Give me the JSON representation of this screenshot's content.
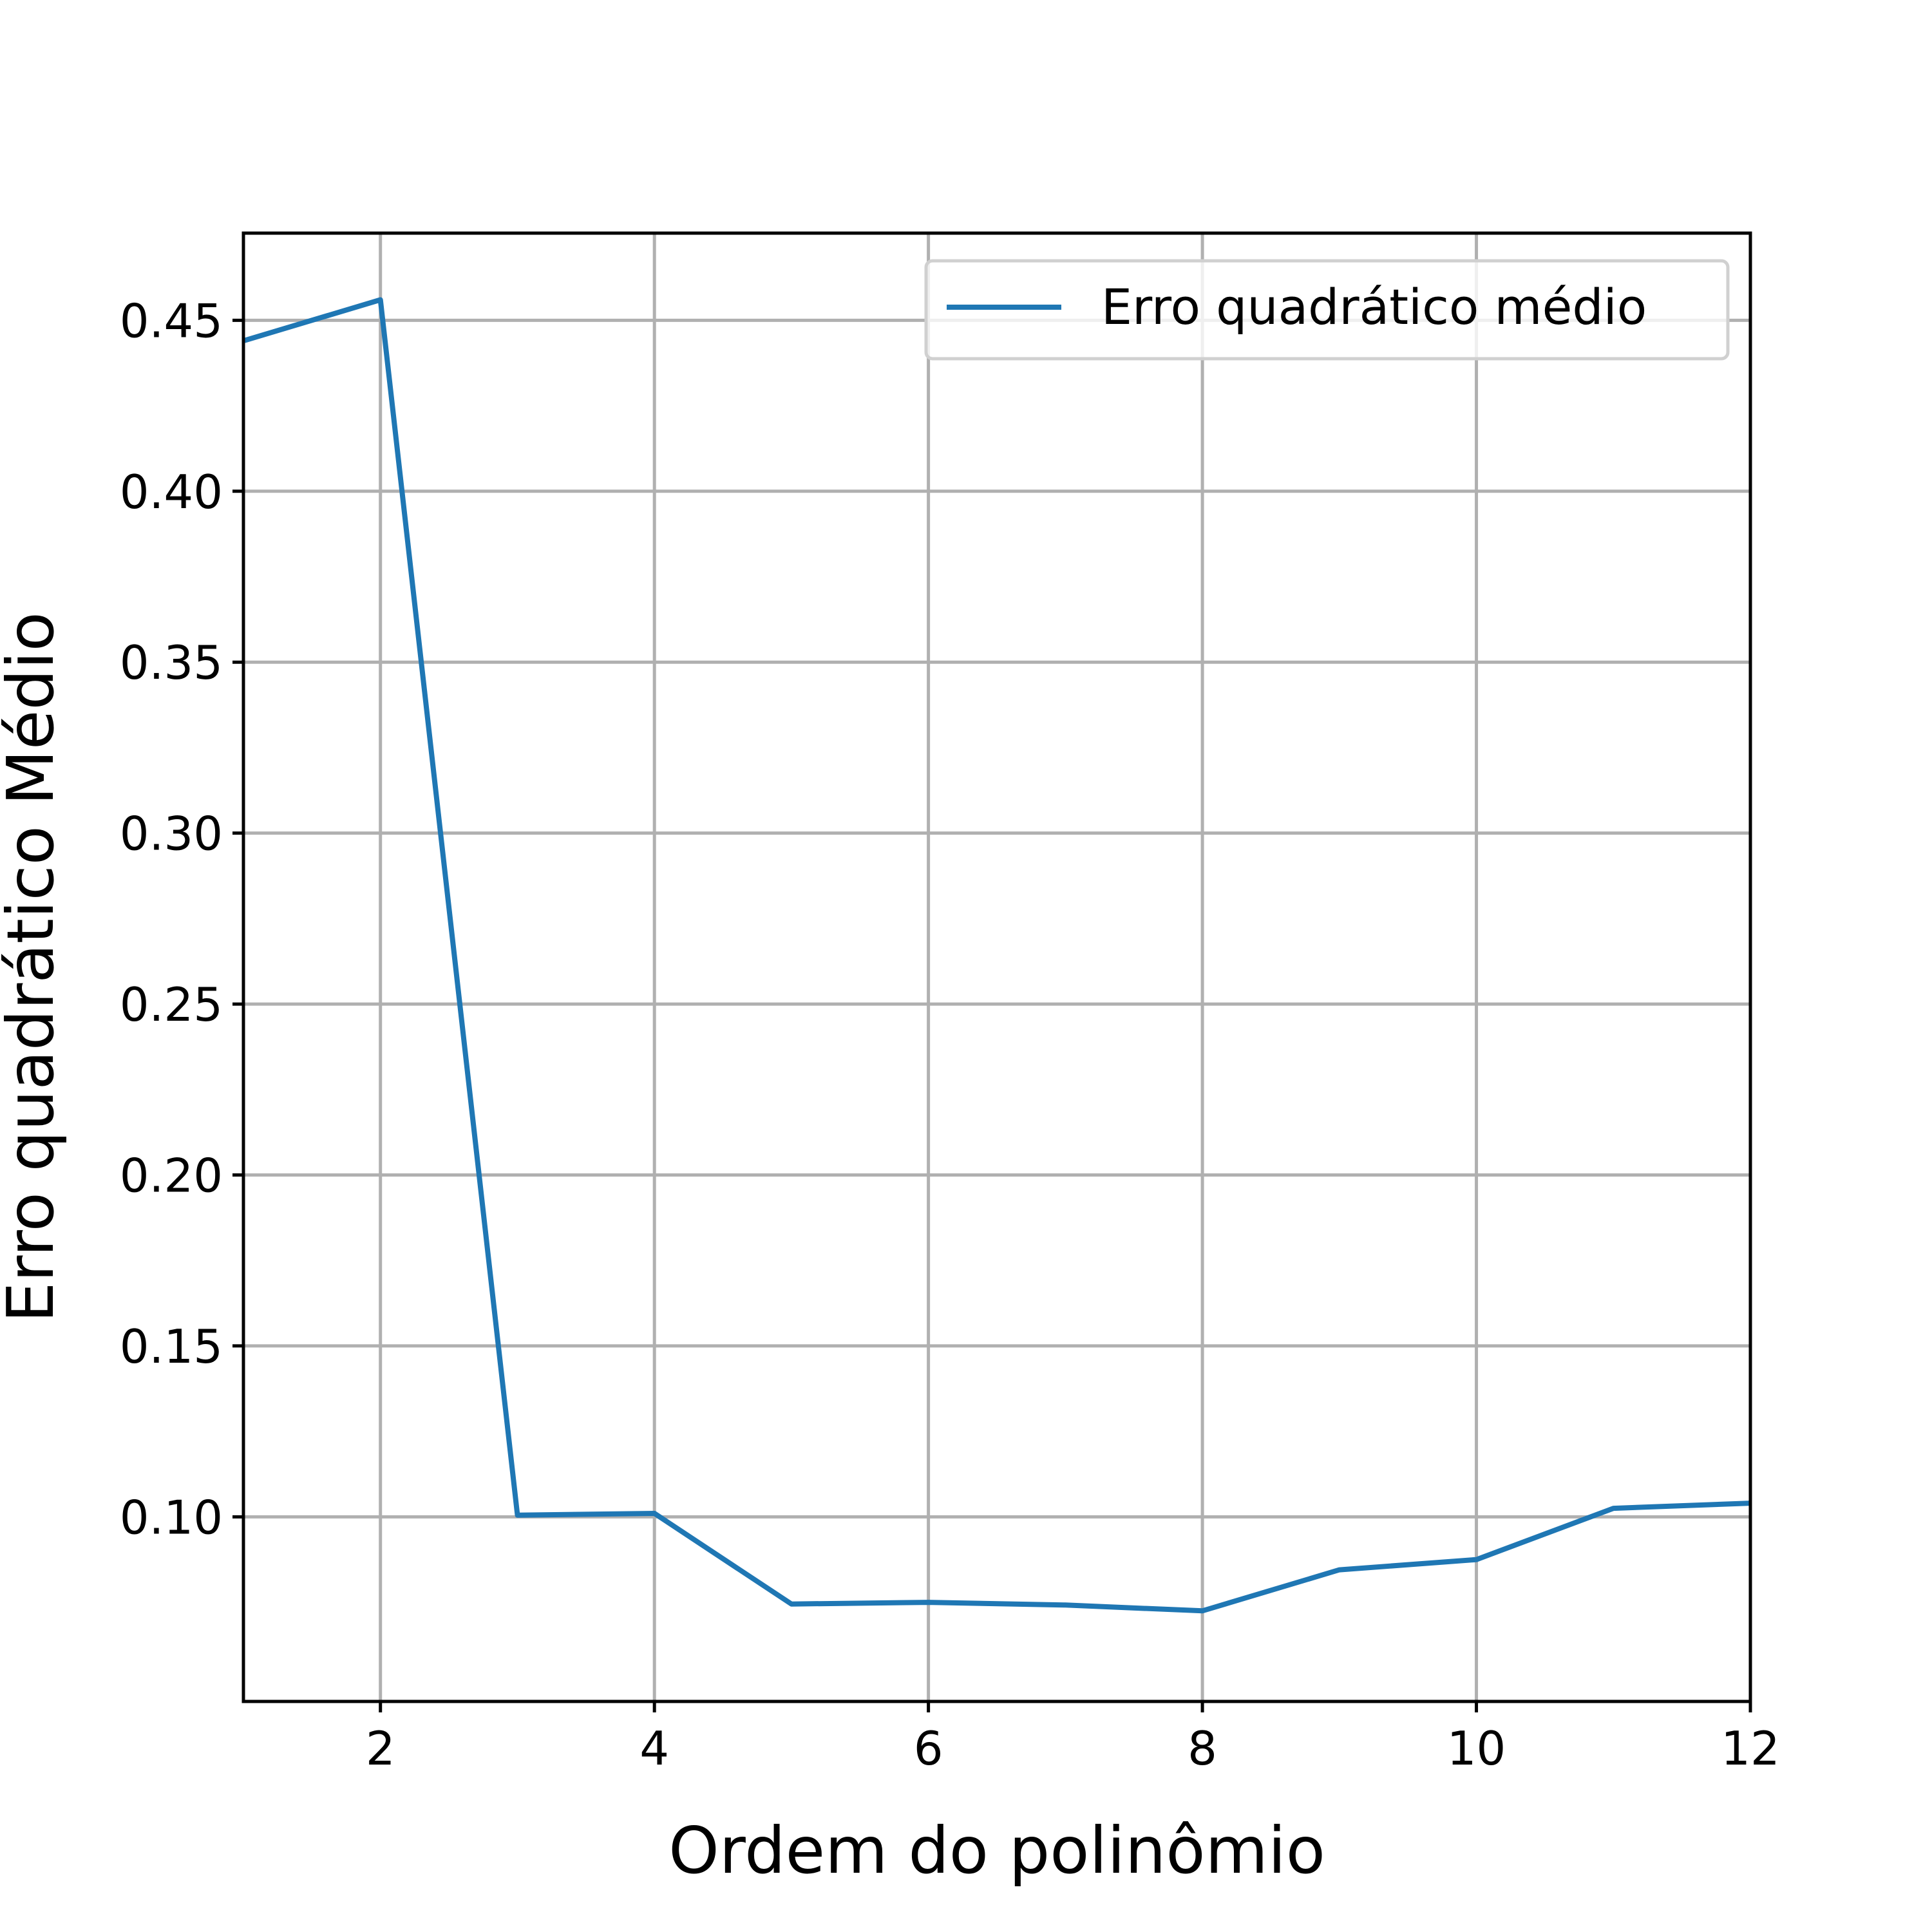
{
  "chart_data": {
    "type": "line",
    "title": "",
    "xlabel": "Ordem do polinômio",
    "ylabel": "Erro quadrático Médio",
    "xlim": [
      1,
      12
    ],
    "ylim": [
      0.046,
      0.4755
    ],
    "xticks": [
      2,
      4,
      6,
      8,
      10,
      12
    ],
    "xtick_labels": [
      "2",
      "4",
      "6",
      "8",
      "10",
      "12"
    ],
    "yticks": [
      0.1,
      0.15,
      0.2,
      0.25,
      0.3,
      0.35,
      0.4,
      0.45
    ],
    "ytick_labels": [
      "0.10",
      "0.15",
      "0.20",
      "0.25",
      "0.30",
      "0.35",
      "0.40",
      "0.45"
    ],
    "grid": true,
    "legend_position": "top-right",
    "series": [
      {
        "name": "Erro quadrático médio",
        "color": "#1f77b4",
        "x": [
          1,
          2,
          3,
          4,
          5,
          6,
          7,
          8,
          9,
          10,
          11,
          12
        ],
        "y": [
          0.444,
          0.456,
          0.1005,
          0.101,
          0.0745,
          0.075,
          0.0742,
          0.0725,
          0.0845,
          0.0875,
          0.1025,
          0.104
        ]
      }
    ]
  }
}
